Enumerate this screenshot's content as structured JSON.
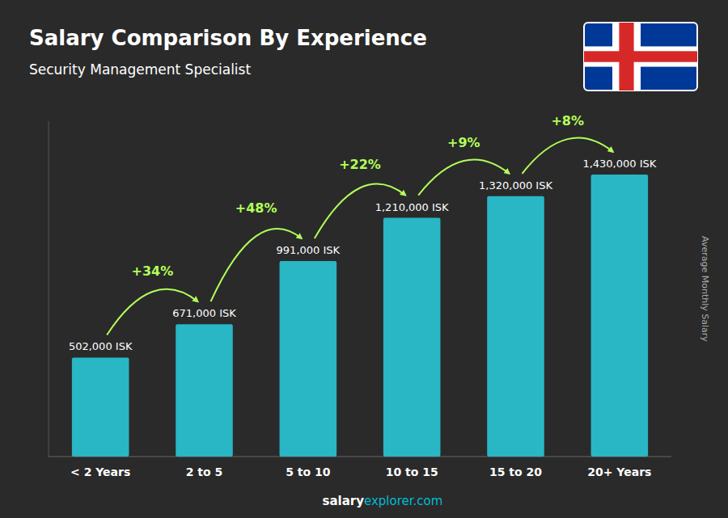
{
  "chart_data": {
    "type": "bar",
    "title": "Salary Comparison By Experience",
    "subtitle": "Security Management Specialist",
    "categories": [
      "< 2 Years",
      "2 to 5",
      "5 to 10",
      "10 to 15",
      "15 to 20",
      "20+ Years"
    ],
    "values": [
      502000,
      671000,
      991000,
      1210000,
      1320000,
      1430000
    ],
    "value_labels": [
      "502,000 ISK",
      "671,000 ISK",
      "991,000 ISK",
      "1,210,000 ISK",
      "1,320,000 ISK",
      "1,430,000 ISK"
    ],
    "data_labels": true,
    "color": "#29b6c5",
    "annotations": [
      "+34%",
      "+48%",
      "+22%",
      "+9%",
      "+8%"
    ],
    "y_label": "Average Monthly Salary",
    "footer": [
      "salary",
      "explorer.com"
    ],
    "ylim": [
      0,
      1700000
    ],
    "tick_labels": "x",
    "grid": false
  }
}
